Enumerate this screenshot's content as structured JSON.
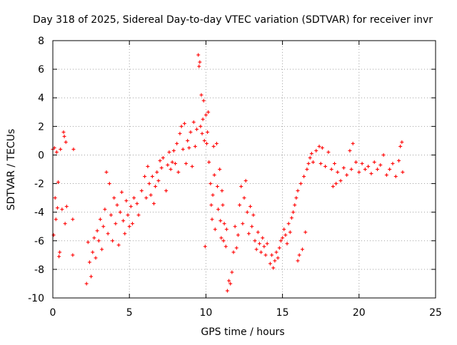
{
  "chart_data": {
    "type": "scatter",
    "title": "Day 318 of 2025, Sidereal Day-to-day VTEC variation (SDTVAR) for receiver invr",
    "xlabel": "GPS time / hours",
    "ylabel": "SDTVAR / TECUs",
    "xlim": [
      0,
      25
    ],
    "ylim": [
      -10,
      8
    ],
    "xticks": [
      "0",
      "5",
      "10",
      "15",
      "20",
      "25"
    ],
    "yticks": [
      "8",
      "6",
      "4",
      "2",
      "0",
      "-2",
      "-4",
      "-6",
      "-8",
      "-10"
    ],
    "grid": true,
    "marker": "plus",
    "color": "#ff0000",
    "series": [
      {
        "name": "SDTVAR",
        "points": [
          [
            0.0,
            0.4
          ],
          [
            0.05,
            -5.6
          ],
          [
            0.1,
            0.5
          ],
          [
            0.15,
            -3.0
          ],
          [
            0.2,
            -4.5
          ],
          [
            0.25,
            0.2
          ],
          [
            0.3,
            -3.7
          ],
          [
            0.35,
            -1.9
          ],
          [
            0.4,
            -7.1
          ],
          [
            0.45,
            -6.8
          ],
          [
            0.5,
            0.4
          ],
          [
            0.6,
            -3.8
          ],
          [
            0.7,
            1.6
          ],
          [
            0.75,
            1.3
          ],
          [
            0.8,
            -4.8
          ],
          [
            0.85,
            0.9
          ],
          [
            0.9,
            -3.6
          ],
          [
            1.3,
            -7.0
          ],
          [
            1.3,
            -4.5
          ],
          [
            1.35,
            0.4
          ],
          [
            2.2,
            -9.0
          ],
          [
            2.3,
            -6.1
          ],
          [
            2.4,
            -7.5
          ],
          [
            2.5,
            -8.5
          ],
          [
            2.6,
            -6.8
          ],
          [
            2.7,
            -5.8
          ],
          [
            2.8,
            -7.2
          ],
          [
            2.9,
            -5.3
          ],
          [
            3.0,
            -6.0
          ],
          [
            3.1,
            -4.5
          ],
          [
            3.2,
            -6.6
          ],
          [
            3.3,
            -5.0
          ],
          [
            3.4,
            -3.8
          ],
          [
            3.5,
            -1.2
          ],
          [
            3.6,
            -5.5
          ],
          [
            3.7,
            -2.0
          ],
          [
            3.8,
            -4.2
          ],
          [
            3.9,
            -6.0
          ],
          [
            4.0,
            -3.0
          ],
          [
            4.1,
            -4.8
          ],
          [
            4.2,
            -3.5
          ],
          [
            4.3,
            -6.3
          ],
          [
            4.4,
            -4.0
          ],
          [
            4.5,
            -2.6
          ],
          [
            4.6,
            -4.6
          ],
          [
            4.7,
            -5.5
          ],
          [
            4.8,
            -3.2
          ],
          [
            4.9,
            -4.2
          ],
          [
            5.0,
            -5.0
          ],
          [
            5.1,
            -3.6
          ],
          [
            5.2,
            -4.8
          ],
          [
            5.3,
            -3.0
          ],
          [
            5.5,
            -3.4
          ],
          [
            5.6,
            -4.2
          ],
          [
            5.8,
            -2.5
          ],
          [
            6.0,
            -1.5
          ],
          [
            6.1,
            -3.0
          ],
          [
            6.2,
            -0.8
          ],
          [
            6.3,
            -2.0
          ],
          [
            6.4,
            -2.8
          ],
          [
            6.5,
            -1.5
          ],
          [
            6.6,
            -3.4
          ],
          [
            6.7,
            -2.2
          ],
          [
            6.8,
            -1.2
          ],
          [
            6.9,
            -1.8
          ],
          [
            7.0,
            -0.4
          ],
          [
            7.1,
            -0.9
          ],
          [
            7.2,
            -0.2
          ],
          [
            7.4,
            -2.5
          ],
          [
            7.5,
            -0.7
          ],
          [
            7.6,
            0.2
          ],
          [
            7.7,
            -1.0
          ],
          [
            7.8,
            -0.5
          ],
          [
            7.9,
            0.3
          ],
          [
            8.0,
            -0.6
          ],
          [
            8.1,
            0.8
          ],
          [
            8.2,
            -1.2
          ],
          [
            8.3,
            1.5
          ],
          [
            8.4,
            2.0
          ],
          [
            8.5,
            0.4
          ],
          [
            8.6,
            2.2
          ],
          [
            8.7,
            -0.6
          ],
          [
            8.8,
            1.0
          ],
          [
            8.9,
            0.5
          ],
          [
            9.0,
            1.6
          ],
          [
            9.1,
            -0.8
          ],
          [
            9.2,
            2.3
          ],
          [
            9.3,
            0.6
          ],
          [
            9.4,
            1.8
          ],
          [
            9.5,
            7.0
          ],
          [
            9.55,
            6.2
          ],
          [
            9.6,
            6.5
          ],
          [
            9.65,
            2.0
          ],
          [
            9.7,
            4.2
          ],
          [
            9.75,
            1.5
          ],
          [
            9.8,
            2.5
          ],
          [
            9.85,
            3.8
          ],
          [
            9.9,
            1.0
          ],
          [
            9.95,
            -6.4
          ],
          [
            10.0,
            2.8
          ],
          [
            10.05,
            0.8
          ],
          [
            10.1,
            1.6
          ],
          [
            10.15,
            3.0
          ],
          [
            10.2,
            -0.5
          ],
          [
            10.3,
            -2.0
          ],
          [
            10.35,
            -3.5
          ],
          [
            10.4,
            -4.5
          ],
          [
            10.45,
            -2.8
          ],
          [
            10.5,
            0.6
          ],
          [
            10.55,
            -1.4
          ],
          [
            10.6,
            -5.2
          ],
          [
            10.7,
            0.8
          ],
          [
            10.75,
            -2.2
          ],
          [
            10.8,
            -3.8
          ],
          [
            10.9,
            -1.0
          ],
          [
            10.95,
            -4.6
          ],
          [
            11.0,
            -5.8
          ],
          [
            11.05,
            -2.5
          ],
          [
            11.1,
            -3.5
          ],
          [
            11.15,
            -6.0
          ],
          [
            11.2,
            -4.8
          ],
          [
            11.3,
            -6.4
          ],
          [
            11.35,
            -5.2
          ],
          [
            11.4,
            -9.5
          ],
          [
            11.5,
            -8.8
          ],
          [
            11.6,
            -9.0
          ],
          [
            11.7,
            -8.2
          ],
          [
            11.8,
            -6.8
          ],
          [
            11.9,
            -5.0
          ],
          [
            12.0,
            -6.5
          ],
          [
            12.1,
            -5.6
          ],
          [
            12.2,
            -3.5
          ],
          [
            12.3,
            -2.2
          ],
          [
            12.4,
            -4.8
          ],
          [
            12.5,
            -3.0
          ],
          [
            12.6,
            -1.8
          ],
          [
            12.7,
            -4.0
          ],
          [
            12.8,
            -5.5
          ],
          [
            12.9,
            -3.6
          ],
          [
            13.0,
            -5.0
          ],
          [
            13.1,
            -4.2
          ],
          [
            13.2,
            -6.0
          ],
          [
            13.3,
            -6.6
          ],
          [
            13.4,
            -5.4
          ],
          [
            13.5,
            -6.2
          ],
          [
            13.6,
            -6.8
          ],
          [
            13.7,
            -5.8
          ],
          [
            13.8,
            -6.4
          ],
          [
            13.9,
            -7.0
          ],
          [
            14.0,
            -6.2
          ],
          [
            14.2,
            -7.6
          ],
          [
            14.3,
            -7.0
          ],
          [
            14.4,
            -7.9
          ],
          [
            14.5,
            -7.4
          ],
          [
            14.6,
            -6.8
          ],
          [
            14.7,
            -7.2
          ],
          [
            14.8,
            -6.5
          ],
          [
            14.9,
            -6.0
          ],
          [
            15.0,
            -5.8
          ],
          [
            15.1,
            -5.2
          ],
          [
            15.2,
            -5.6
          ],
          [
            15.3,
            -6.2
          ],
          [
            15.4,
            -4.8
          ],
          [
            15.5,
            -5.4
          ],
          [
            15.6,
            -4.4
          ],
          [
            15.7,
            -4.0
          ],
          [
            15.8,
            -3.5
          ],
          [
            15.9,
            -3.0
          ],
          [
            16.0,
            -7.4
          ],
          [
            16.0,
            -2.5
          ],
          [
            16.1,
            -7.0
          ],
          [
            16.2,
            -2.0
          ],
          [
            16.3,
            -6.6
          ],
          [
            16.4,
            -1.5
          ],
          [
            16.5,
            -5.4
          ],
          [
            16.6,
            -1.0
          ],
          [
            16.7,
            -0.6
          ],
          [
            16.8,
            -0.2
          ],
          [
            16.9,
            0.1
          ],
          [
            17.0,
            -0.5
          ],
          [
            17.2,
            0.3
          ],
          [
            17.4,
            0.6
          ],
          [
            17.5,
            -0.6
          ],
          [
            17.6,
            0.5
          ],
          [
            17.8,
            -0.8
          ],
          [
            18.0,
            0.2
          ],
          [
            18.2,
            -1.0
          ],
          [
            18.3,
            -2.2
          ],
          [
            18.4,
            -0.6
          ],
          [
            18.5,
            -2.0
          ],
          [
            18.6,
            -1.2
          ],
          [
            18.8,
            -1.8
          ],
          [
            19.0,
            -0.9
          ],
          [
            19.2,
            -1.4
          ],
          [
            19.4,
            0.3
          ],
          [
            19.5,
            -1.0
          ],
          [
            19.6,
            0.8
          ],
          [
            19.8,
            -0.5
          ],
          [
            20.0,
            -1.2
          ],
          [
            20.2,
            -0.6
          ],
          [
            20.4,
            -1.0
          ],
          [
            20.6,
            -0.8
          ],
          [
            20.8,
            -1.3
          ],
          [
            21.0,
            -0.5
          ],
          [
            21.2,
            -1.0
          ],
          [
            21.4,
            -0.7
          ],
          [
            21.6,
            0.0
          ],
          [
            21.8,
            -1.4
          ],
          [
            22.0,
            -1.0
          ],
          [
            22.2,
            -0.6
          ],
          [
            22.4,
            -1.5
          ],
          [
            22.6,
            -0.4
          ],
          [
            22.7,
            0.6
          ],
          [
            22.8,
            0.9
          ],
          [
            22.85,
            -1.2
          ]
        ]
      }
    ]
  }
}
